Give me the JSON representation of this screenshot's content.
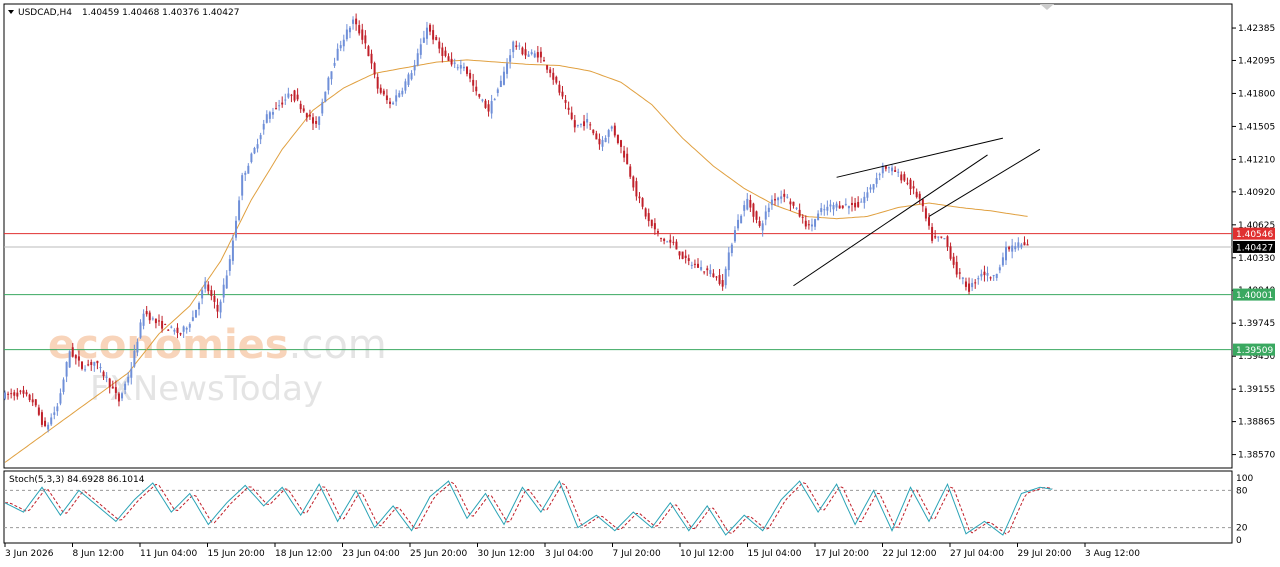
{
  "header": {
    "symbol_label": "USDCAD,H4",
    "ohlc_text": "1.40459 1.40468 1.40376 1.40427"
  },
  "watermark": {
    "line1_part1": "econo",
    "line1_part2": "mies",
    "line1_part3": ".com",
    "line2": "FXNewsToday"
  },
  "colors": {
    "bull": "#6f8fd8",
    "bear": "#c0202a",
    "ma": "#e0a040",
    "resistance": "#e03030",
    "support": "#3aa860",
    "bid": "#000000",
    "stoch_main": "#2aa3b6",
    "stoch_signal": "#c0202a"
  },
  "chart_data": {
    "type": "candlestick",
    "symbol": "USDCAD",
    "timeframe": "H4",
    "ylim": [
      1.3845,
      1.426
    ],
    "y_ticks": [
      "1.42385",
      "1.42095",
      "1.41800",
      "1.41505",
      "1.41210",
      "1.40920",
      "1.40625",
      "1.40330",
      "1.40040",
      "1.39745",
      "1.39450",
      "1.39155",
      "1.38865",
      "1.38570"
    ],
    "x_ticks": [
      "3 Jun 2026",
      "8 Jun 12:00",
      "11 Jun 04:00",
      "15 Jun 20:00",
      "18 Jun 12:00",
      "23 Jun 04:00",
      "25 Jun 20:00",
      "30 Jun 12:00",
      "3 Jul 04:00",
      "7 Jul 20:00",
      "10 Jul 12:00",
      "15 Jul 04:00",
      "17 Jul 20:00",
      "22 Jul 12:00",
      "27 Jul 04:00",
      "29 Jul 20:00",
      "3 Aug 12:00"
    ],
    "price_path": [
      [
        0,
        1.391
      ],
      [
        5,
        1.3912
      ],
      [
        9,
        1.3905
      ],
      [
        13,
        1.388
      ],
      [
        17,
        1.39
      ],
      [
        21,
        1.395
      ],
      [
        25,
        1.3935
      ],
      [
        29,
        1.394
      ],
      [
        33,
        1.3925
      ],
      [
        37,
        1.3905
      ],
      [
        41,
        1.3935
      ],
      [
        45,
        1.3985
      ],
      [
        49,
        1.3975
      ],
      [
        53,
        1.397
      ],
      [
        57,
        1.3965
      ],
      [
        61,
        1.398
      ],
      [
        65,
        1.401
      ],
      [
        69,
        1.3985
      ],
      [
        73,
        1.403
      ],
      [
        77,
        1.4105
      ],
      [
        81,
        1.413
      ],
      [
        85,
        1.416
      ],
      [
        89,
        1.417
      ],
      [
        93,
        1.418
      ],
      [
        97,
        1.4165
      ],
      [
        101,
        1.415
      ],
      [
        105,
        1.4195
      ],
      [
        109,
        1.4225
      ],
      [
        113,
        1.4245
      ],
      [
        117,
        1.4225
      ],
      [
        121,
        1.4185
      ],
      [
        125,
        1.417
      ],
      [
        129,
        1.4185
      ],
      [
        133,
        1.4205
      ],
      [
        137,
        1.424
      ],
      [
        141,
        1.422
      ],
      [
        145,
        1.4205
      ],
      [
        149,
        1.4205
      ],
      [
        153,
        1.418
      ],
      [
        157,
        1.4165
      ],
      [
        161,
        1.419
      ],
      [
        165,
        1.4225
      ],
      [
        169,
        1.4215
      ],
      [
        173,
        1.4215
      ],
      [
        177,
        1.42
      ],
      [
        181,
        1.4175
      ],
      [
        185,
        1.415
      ],
      [
        189,
        1.4155
      ],
      [
        193,
        1.4135
      ],
      [
        197,
        1.415
      ],
      [
        201,
        1.4125
      ],
      [
        205,
        1.409
      ],
      [
        209,
        1.4065
      ],
      [
        213,
        1.405
      ],
      [
        217,
        1.4045
      ],
      [
        221,
        1.403
      ],
      [
        225,
        1.4025
      ],
      [
        229,
        1.402
      ],
      [
        233,
        1.401
      ],
      [
        237,
        1.406
      ],
      [
        241,
        1.4085
      ],
      [
        245,
        1.406
      ],
      [
        249,
        1.4085
      ],
      [
        253,
        1.409
      ],
      [
        257,
        1.4075
      ],
      [
        261,
        1.406
      ],
      [
        265,
        1.4075
      ],
      [
        269,
        1.408
      ],
      [
        273,
        1.408
      ],
      [
        277,
        1.408
      ],
      [
        281,
        1.4095
      ],
      [
        285,
        1.4115
      ],
      [
        289,
        1.411
      ],
      [
        293,
        1.41
      ],
      [
        297,
        1.4085
      ],
      [
        301,
        1.405
      ],
      [
        305,
        1.405
      ],
      [
        309,
        1.402
      ],
      [
        313,
        1.4005
      ],
      [
        317,
        1.402
      ],
      [
        321,
        1.4015
      ],
      [
        325,
        1.404
      ],
      [
        329,
        1.4045
      ],
      [
        332,
        1.4043
      ]
    ],
    "ma_path": [
      [
        0,
        1.385
      ],
      [
        10,
        1.387
      ],
      [
        20,
        1.389
      ],
      [
        30,
        1.391
      ],
      [
        40,
        1.393
      ],
      [
        50,
        1.3965
      ],
      [
        60,
        1.399
      ],
      [
        70,
        1.403
      ],
      [
        80,
        1.4085
      ],
      [
        90,
        1.413
      ],
      [
        100,
        1.4165
      ],
      [
        110,
        1.4185
      ],
      [
        120,
        1.4198
      ],
      [
        130,
        1.4203
      ],
      [
        140,
        1.4208
      ],
      [
        150,
        1.421
      ],
      [
        160,
        1.4208
      ],
      [
        170,
        1.4206
      ],
      [
        180,
        1.4205
      ],
      [
        190,
        1.42
      ],
      [
        200,
        1.419
      ],
      [
        210,
        1.417
      ],
      [
        220,
        1.414
      ],
      [
        230,
        1.4115
      ],
      [
        240,
        1.4095
      ],
      [
        250,
        1.408
      ],
      [
        260,
        1.407
      ],
      [
        270,
        1.4068
      ],
      [
        280,
        1.407
      ],
      [
        290,
        1.4078
      ],
      [
        300,
        1.4082
      ],
      [
        310,
        1.4078
      ],
      [
        320,
        1.4075
      ],
      [
        332,
        1.407
      ]
    ],
    "levels": [
      {
        "price": 1.40546,
        "label": "1.40546",
        "kind": "resistance"
      },
      {
        "price": 1.40427,
        "label": "1.40427",
        "kind": "bid"
      },
      {
        "price": 1.40001,
        "label": "1.40001",
        "kind": "support"
      },
      {
        "price": 1.39509,
        "label": "1.39509",
        "kind": "support"
      }
    ],
    "trendlines": [
      {
        "from": [
          256,
          1.4008
        ],
        "to": [
          319,
          1.4125
        ]
      },
      {
        "from": [
          270,
          1.4105
        ],
        "to": [
          324,
          1.414
        ]
      },
      {
        "from": [
          300,
          1.407
        ],
        "to": [
          336,
          1.413
        ]
      }
    ],
    "stochastic": {
      "label": "Stoch(5,3,3) 84.6928 86.1014",
      "main": 84.6928,
      "signal": 86.1014,
      "ylim": [
        0,
        100
      ],
      "levels": [
        "100",
        "80",
        "20",
        "0"
      ],
      "path": [
        [
          0,
          60
        ],
        [
          6,
          45
        ],
        [
          12,
          85
        ],
        [
          18,
          40
        ],
        [
          24,
          80
        ],
        [
          30,
          55
        ],
        [
          36,
          30
        ],
        [
          42,
          65
        ],
        [
          48,
          92
        ],
        [
          54,
          45
        ],
        [
          60,
          75
        ],
        [
          66,
          25
        ],
        [
          72,
          60
        ],
        [
          78,
          88
        ],
        [
          84,
          55
        ],
        [
          90,
          85
        ],
        [
          96,
          40
        ],
        [
          102,
          90
        ],
        [
          108,
          30
        ],
        [
          114,
          80
        ],
        [
          120,
          20
        ],
        [
          126,
          55
        ],
        [
          132,
          15
        ],
        [
          138,
          70
        ],
        [
          144,
          95
        ],
        [
          150,
          35
        ],
        [
          156,
          75
        ],
        [
          162,
          25
        ],
        [
          168,
          85
        ],
        [
          174,
          45
        ],
        [
          180,
          95
        ],
        [
          186,
          20
        ],
        [
          192,
          40
        ],
        [
          198,
          15
        ],
        [
          204,
          45
        ],
        [
          210,
          20
        ],
        [
          216,
          60
        ],
        [
          222,
          15
        ],
        [
          228,
          55
        ],
        [
          234,
          8
        ],
        [
          240,
          40
        ],
        [
          246,
          15
        ],
        [
          252,
          65
        ],
        [
          258,
          95
        ],
        [
          264,
          45
        ],
        [
          270,
          90
        ],
        [
          276,
          25
        ],
        [
          282,
          80
        ],
        [
          288,
          15
        ],
        [
          294,
          85
        ],
        [
          300,
          30
        ],
        [
          306,
          90
        ],
        [
          312,
          10
        ],
        [
          318,
          30
        ],
        [
          324,
          8
        ],
        [
          330,
          75
        ],
        [
          336,
          85
        ],
        [
          340,
          82
        ]
      ]
    }
  }
}
